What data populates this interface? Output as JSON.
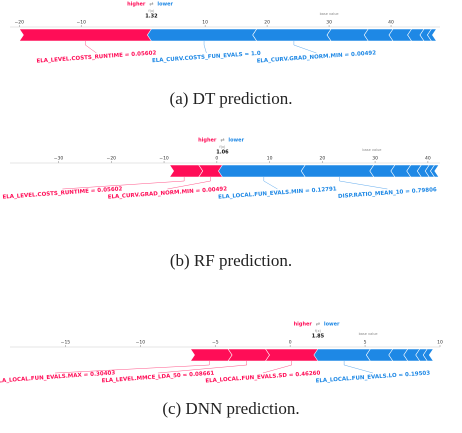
{
  "chart_data": [
    {
      "type": "force",
      "higher_label": "higher",
      "arrow": "⇄",
      "lower_label": "lower",
      "fx_label": "f(x)",
      "fx": 1.32,
      "base_label": "base value",
      "base": 30,
      "xlim": [
        -21.5,
        47.9
      ],
      "xticks": [
        {
          "value": -20,
          "label": "−20"
        },
        {
          "value": -10,
          "label": "−10"
        },
        10,
        20,
        30,
        40
      ],
      "features": [
        "ELA_LEVEL.COSTS_RUNTIME = 0.05602",
        "ELA_CURV.COSTS_FUN_EVALS = 1.0",
        "ELA_CURV.GRAD_NORM.MIN = 0.00492",
        null,
        null,
        null,
        null,
        null,
        null
      ],
      "values": [
        21.3,
        -17,
        -12,
        -6,
        -4,
        -3,
        -2,
        -1.2,
        -0.8
      ],
      "positive_color": "#ff0d57",
      "negative_color": "#1e88e5",
      "caption": "(a) DT prediction."
    },
    {
      "type": "force",
      "higher_label": "higher",
      "arrow": "⇄",
      "lower_label": "lower",
      "fx_label": "f(x)",
      "fx": 1.06,
      "base_label": "base value",
      "base": 29.4,
      "xlim": [
        -39.2,
        42.3
      ],
      "xticks": [
        {
          "value": -30,
          "label": "−30"
        },
        {
          "value": -20,
          "label": "−20"
        },
        {
          "value": -10,
          "label": "−10"
        },
        0,
        10,
        20,
        30,
        40
      ],
      "features": [
        "ELA_CURV.GRAD_NORM.MIN = 0.00492",
        "ELA_LEVEL.COSTS_RUNTIME = 0.05602",
        "ELA_LOCAL.FUN_EVALS.MIN = 0.12791",
        "DISP.RATIO_MEAN_10 = 0.79806",
        null,
        null,
        null,
        null,
        null,
        null
      ],
      "values": [
        4.5,
        5.5,
        -15.7,
        -13,
        -4,
        -3,
        -2,
        -1.5,
        -1,
        -0.8
      ],
      "positive_color": "#ff0d57",
      "negative_color": "#1e88e5",
      "caption": "(b) RF prediction."
    },
    {
      "type": "force",
      "higher_label": "higher",
      "arrow": "⇄",
      "lower_label": "lower",
      "fx_label": "f(x)",
      "fx": 1.85,
      "base_label": "base value",
      "base": 5.2,
      "xlim": [
        -18.7,
        10
      ],
      "xticks": [
        {
          "value": -15,
          "label": "−15"
        },
        {
          "value": -10,
          "label": "−10"
        },
        {
          "value": -5,
          "label": "−5"
        },
        0,
        5,
        10
      ],
      "features": [
        "ELA_LOCAL.FUN_EVALS.SD = 0.46260",
        "ELA_LEVEL.MMCE_LDA_50 = 0.08661",
        "ELA_LOCAL.FUN_EVALS.MAX = 0.30403",
        "ELA_LOCAL.FUN_EVALS.LO = 0.19503",
        null,
        null,
        null,
        null,
        null
      ],
      "values": [
        3.5,
        2.5,
        2.5,
        -3.5,
        -1.5,
        -1,
        -0.8,
        -0.5,
        -0.4
      ],
      "positive_color": "#ff0d57",
      "negative_color": "#1e88e5",
      "caption": "(c) DNN prediction."
    }
  ]
}
